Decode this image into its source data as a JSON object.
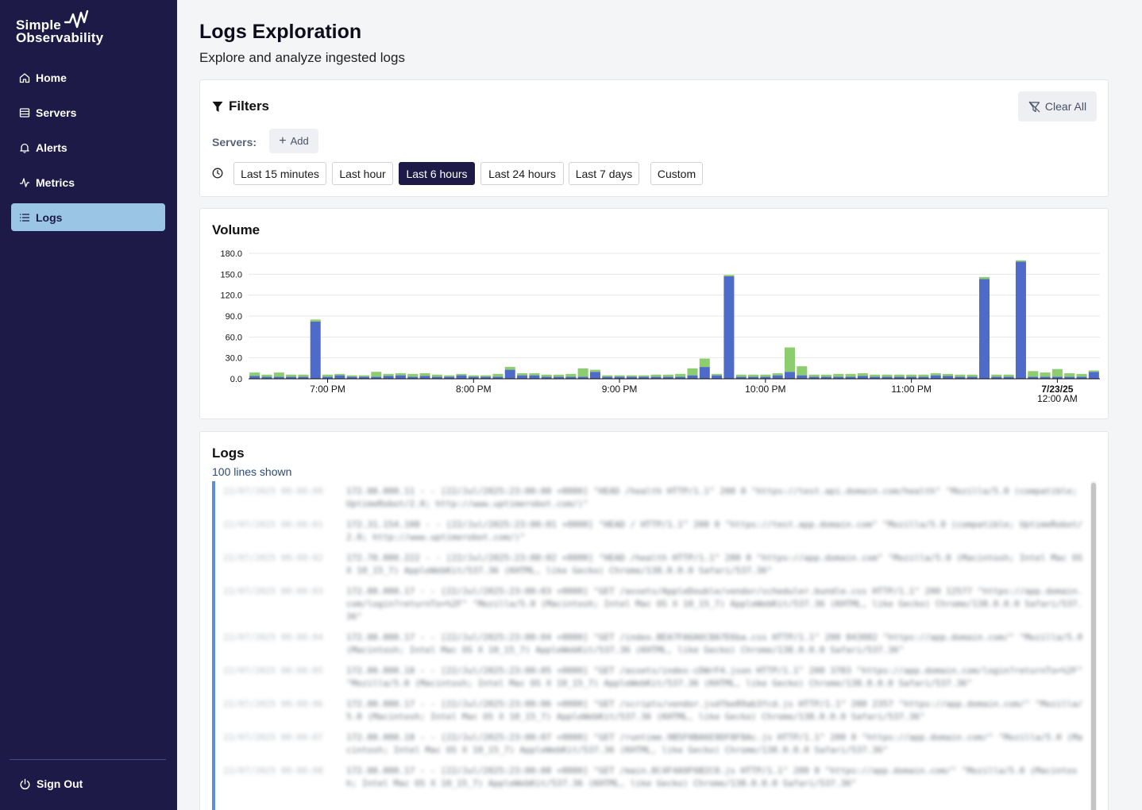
{
  "brand": {
    "line1": "Simple",
    "line2": "Observability"
  },
  "nav": {
    "items": [
      {
        "label": "Home",
        "icon": "home-icon"
      },
      {
        "label": "Servers",
        "icon": "server-icon"
      },
      {
        "label": "Alerts",
        "icon": "bell-icon"
      },
      {
        "label": "Metrics",
        "icon": "activity-icon"
      },
      {
        "label": "Logs",
        "icon": "list-icon",
        "active": true
      }
    ],
    "signout": "Sign Out"
  },
  "page": {
    "title": "Logs Exploration",
    "subtitle": "Explore and analyze ingested logs"
  },
  "filters": {
    "title": "Filters",
    "clear_all": "Clear All",
    "servers_label": "Servers:",
    "add_label": "Add",
    "ranges": [
      "Last 15 minutes",
      "Last hour",
      "Last 6 hours",
      "Last 24 hours",
      "Last 7 days",
      "Custom"
    ],
    "active_range": "Last 6 hours"
  },
  "volume": {
    "title": "Volume"
  },
  "chart_data": {
    "type": "bar",
    "stacked": true,
    "yticks": [
      "180.0",
      "150.0",
      "120.0",
      "90.0",
      "60.0",
      "30.0",
      "0.0"
    ],
    "ylim": [
      0,
      180
    ],
    "xticks": [
      {
        "label": "7:00 PM",
        "bar": 6.5
      },
      {
        "label": "8:00 PM",
        "bar": 18.5
      },
      {
        "label": "9:00 PM",
        "bar": 30.5
      },
      {
        "label": "10:00 PM",
        "bar": 42.5
      },
      {
        "label": "11:00 PM",
        "bar": 54.5
      },
      {
        "label": "7/23/25",
        "sublabel": "12:00 AM",
        "bar": 66.5,
        "bold": true
      }
    ],
    "series": [
      {
        "color": "#4f6bc9",
        "values": [
          4,
          3,
          3,
          3,
          3,
          82,
          3,
          5,
          3,
          3,
          3,
          4,
          5,
          3,
          4,
          3,
          3,
          5,
          3,
          3,
          3,
          13,
          5,
          5,
          3,
          3,
          3,
          3,
          10,
          3,
          3,
          3,
          3,
          3,
          3,
          3,
          5,
          17,
          5,
          147,
          3,
          3,
          3,
          5,
          10,
          5,
          3,
          3,
          3,
          3,
          4,
          3,
          3,
          3,
          3,
          3,
          5,
          4,
          3,
          3,
          143,
          3,
          3,
          168,
          3,
          3,
          3,
          3,
          3,
          10
        ]
      },
      {
        "color": "#8ccd6e",
        "values": [
          5,
          3,
          6,
          3,
          3,
          3,
          3,
          2,
          2,
          2,
          7,
          3,
          3,
          4,
          4,
          3,
          2,
          2,
          2,
          2,
          4,
          4,
          3,
          3,
          3,
          3,
          4,
          12,
          3,
          2,
          2,
          2,
          2,
          3,
          3,
          4,
          10,
          12,
          2,
          2,
          3,
          3,
          3,
          3,
          35,
          13,
          3,
          3,
          4,
          4,
          4,
          3,
          3,
          3,
          3,
          3,
          3,
          3,
          3,
          3,
          3,
          3,
          3,
          2,
          8,
          6,
          11,
          5,
          4,
          2
        ]
      }
    ]
  },
  "logs": {
    "title": "Logs",
    "count_text": "100 lines shown",
    "entries": [
      {
        "ts": "22/07/2025 00:00:00",
        "msg": "172.00.000.11 - - [22/Jul/2025:23:00:00 +0000] \"HEAD /health HTTP/1.1\" 200 0 \"https://test.api.domain.com/health\" \"Mozilla/5.0 (compatible; UptimeRobot/2.0; http://www.uptimerobot.com/)\""
      },
      {
        "ts": "22/07/2025 00:00:01",
        "msg": "172.31.154.108 - - [22/Jul/2025:23:00:01 +0000] \"HEAD / HTTP/1.1\" 200 0 \"https://test.app.domain.com\" \"Mozilla/5.0 (compatible; UptimeRobot/2.0; http://www.uptimerobot.com/)\""
      },
      {
        "ts": "22/07/2025 00:00:02",
        "msg": "172.70.000.222 - - [22/Jul/2025:23:00:02 +0000] \"HEAD /health HTTP/1.1\" 200 0 \"https://app.domain.com\" \"Mozilla/5.0 (Macintosh; Intel Mac OS X 10_15_7) AppleWebKit/537.36 (KHTML, like Gecko) Chrome/138.0.0.0 Safari/537.36\""
      },
      {
        "ts": "22/07/2025 00:00:03",
        "msg": "172.00.000.17 - - [22/Jul/2025:23:00:03 +0000] \"GET /assets/AppleDouble/vendor/scheduler.bundle.css HTTP/1.1\" 200 12577 \"https://app.domain.com/login?returnTo=%2F\" \"Mozilla/5.0 (Macintosh; Intel Mac OS X 10_15_7) AppleWebKit/537.36 (KHTML, like Gecko) Chrome/138.0.0.0 Safari/537.36\""
      },
      {
        "ts": "22/07/2025 00:00:04",
        "msg": "172.00.000.17 - - [22/Jul/2025:23:00:04 +0000] \"GET /index.BEA7FA6A6C8A7E6ba.css HTTP/1.1\" 200 843082 \"https://app.domain.com/\" \"Mozilla/5.0 (Macintosh; Intel Mac OS X 10_15_7) AppleWebKit/537.36 (KHTML, like Gecko) Chrome/138.0.0.0 Safari/537.36\""
      },
      {
        "ts": "22/07/2025 00:00:05",
        "msg": "172.00.000.18 - - [22/Jul/2025:23:00:05 +0000] \"GET /assets/index-cDWrF4.json HTTP/1.1\" 200 3783 \"https://app.domain.com/login?returnTo=%2F\" \"Mozilla/5.0 (Macintosh; Intel Mac OS X 10_15_7) AppleWebKit/537.36 (KHTML, like Gecko) Chrome/138.0.0.0 Safari/537.36\""
      },
      {
        "ts": "22/07/2025 00:00:06",
        "msg": "172.00.000.17 - - [22/Jul/2025:23:00:06 +0000] \"GET /scripts/vendor.jsdfbe89ab3fcd.js HTTP/1.1\" 200 2357 \"https://app.domain.com/\" \"Mozilla/5.0 (Macintosh; Intel Mac OS X 10_15_7) AppleWebKit/537.36 (KHTML, like Gecko) Chrome/138.0.0.0 Safari/537.36\""
      },
      {
        "ts": "22/07/2025 00:00:07",
        "msg": "172.00.000.18 - - [22/Jul/2025:23:00:07 +0000] \"GET /runtime.9B5F0BA6E9DF8F8Ac.js HTTP/1.1\" 200 0 \"https://app.domain.com/\" \"Mozilla/5.0 (Macintosh; Intel Mac OS X 10_15_7) AppleWebKit/537.36 (KHTML, like Gecko) Chrome/138.0.0.0 Safari/537.36\""
      },
      {
        "ts": "22/07/2025 00:00:08",
        "msg": "172.00.000.17 - - [22/Jul/2025:23:00:08 +0000] \"GET /main.8C4F4A9F6B2C0.js HTTP/1.1\" 200 0 \"https://app.domain.com/\" \"Mozilla/5.0 (Macintosh; Intel Mac OS X 10_15_7) AppleWebKit/537.36 (KHTML, like Gecko) Chrome/138.0.0.0 Safari/537.36\""
      }
    ]
  }
}
